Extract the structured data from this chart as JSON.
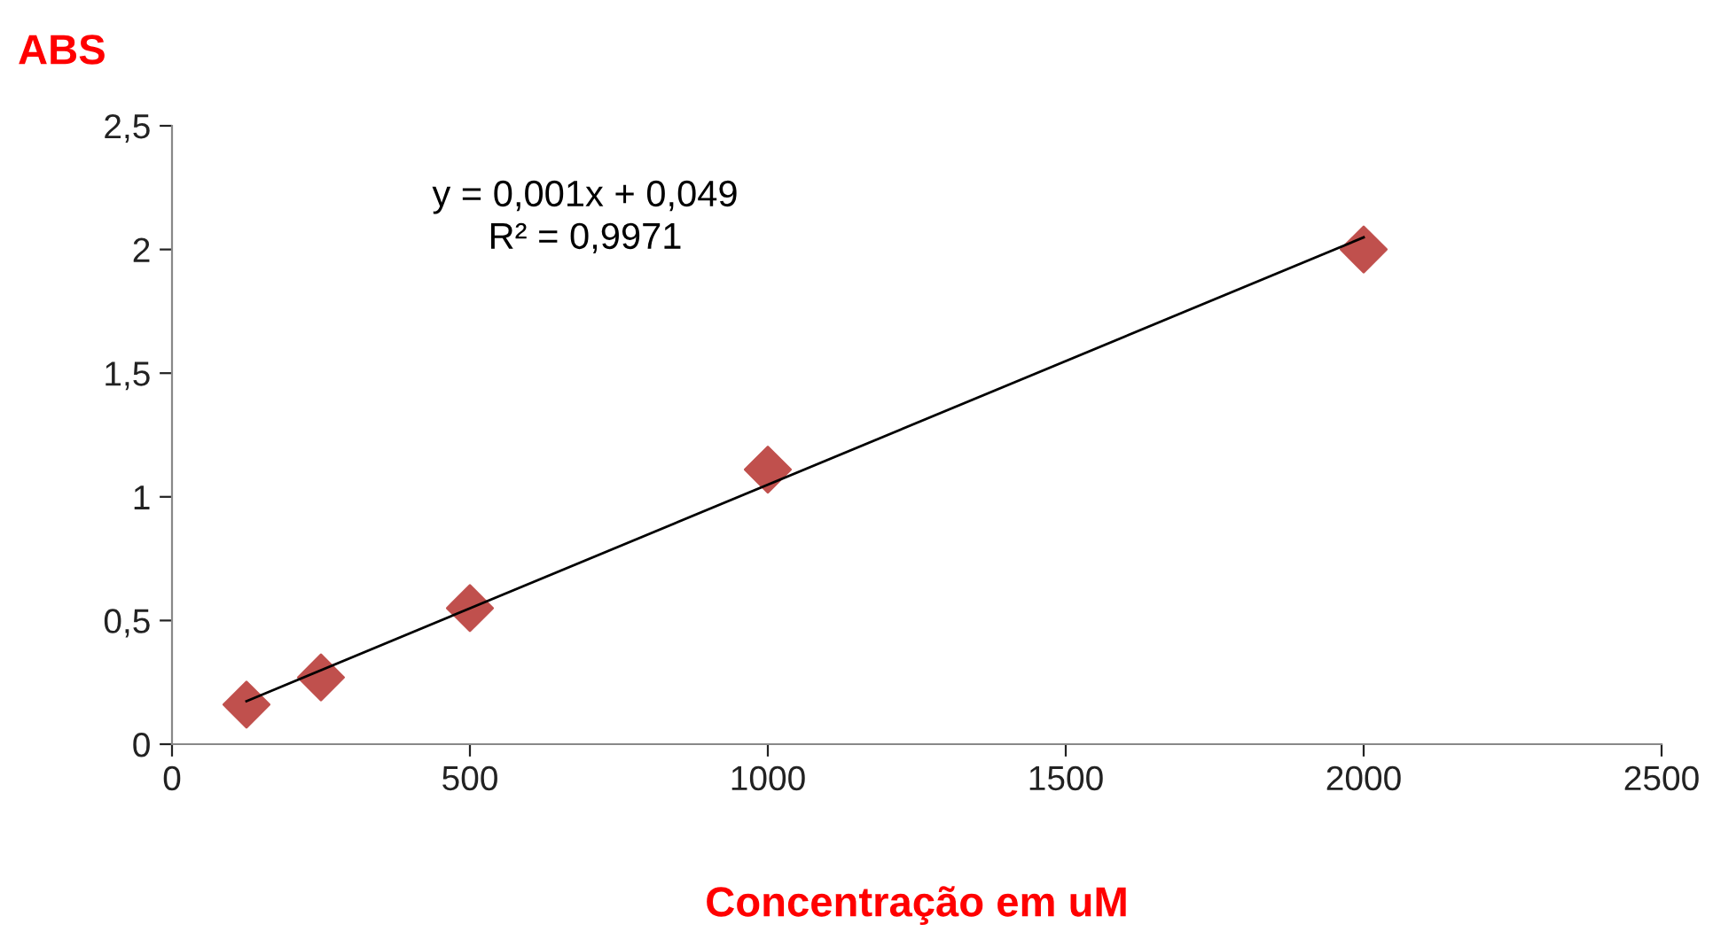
{
  "chart_data": {
    "type": "scatter",
    "ylabel": "ABS",
    "xlabel": "Concentração em uM",
    "series": [
      {
        "color": "#c0504d",
        "marker": "diamond",
        "x": [
          125,
          250,
          500,
          1000,
          2000
        ],
        "values": [
          0.16,
          0.27,
          0.55,
          1.11,
          2.0
        ]
      },
      {
        "type": "line",
        "color": "#000000",
        "marker": "none",
        "x": [
          125,
          2000
        ],
        "values": [
          0.174,
          2.049
        ]
      }
    ],
    "annotations": [
      "y = 0,001x + 0,049\nR² = 0,9971"
    ],
    "xlim": [
      0,
      2500
    ],
    "xticks": [
      0,
      500,
      1000,
      1500,
      2000,
      2500
    ],
    "ylim": [
      0,
      2.5
    ],
    "yticks": [
      0,
      {
        "value": 0.5,
        "label": "0,5"
      },
      1,
      {
        "value": 1.5,
        "label": "1,5"
      },
      2,
      {
        "value": 2.5,
        "label": "2,5"
      }
    ],
    "grid": false,
    "legend": false
  }
}
